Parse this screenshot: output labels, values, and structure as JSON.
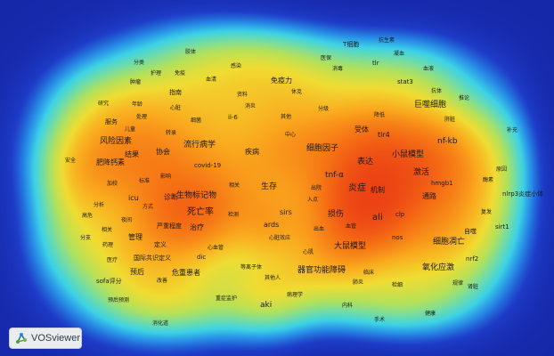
{
  "logo": {
    "text": "VOSviewer"
  },
  "terms": {
    "t_fengxianyinsu": "风险因素",
    "t_jijiangjisu": "肥降钙素",
    "t_jieguo": "结果",
    "t_xiehui": "协会",
    "t_liuxingbingxue": "流行病学",
    "t_icu": "icu",
    "t_zhenduan": "诊断",
    "t_shengwubiaojiwu": "生物标记物",
    "t_siwanglv": "死亡率",
    "t_guanli": "管理",
    "t_zhiliao": "治疗",
    "t_yuhou": "预后",
    "t_weizhonghuanzhe": "危重患者",
    "t_ards": "ards",
    "t_sirs": "sirs",
    "t_shengcun": "生存",
    "t_aki": "aki",
    "t_qiguangongnengzhangai": "器官功能障碍",
    "t_biaoda": "表达",
    "t_yanzheng": "炎症",
    "t_jizhi": "机制",
    "t_xiaoshumoxing": "小鼠模型",
    "t_jihuo": "激活",
    "t_tujing": "通路",
    "t_nfkb": "nf-kb",
    "t_ali": "ali",
    "t_sunshang": "损伤",
    "t_dashumoxing": "大鼠模型",
    "t_ximiaosiwang": "细胞凋亡",
    "t_yanghuayingji": "氧化应激",
    "t_juzhixibao": "巨噬细胞",
    "t_xibaoyinzi": "细胞因子",
    "t_tnfa": "tnf-α",
    "t_tlr4": "tlr4",
    "t_shouti": "受体",
    "t_mianyili": "免疫力",
    "t_tixibao": "T细胞",
    "t_tlr": "tlr",
    "t_stat3": "stat3",
    "t_il6": "il-6",
    "t_covid19": "covid-19",
    "t_jibing": "疾病",
    "t_jiance": "检测",
    "t_dic": "dic",
    "t_sofa": "sofa评分",
    "t_clp": "clp",
    "t_nos": "nos",
    "t_hmgb1": "hmgb1",
    "t_nlrp3": "nlrp3炎症小体",
    "t_sirt1": "sirt1",
    "t_nrf2": "nrf2",
    "t_zishi": "自噬",
    "t_jiaoti": "胶体",
    "t_fenlei": "分类",
    "t_huli": "护理",
    "t_mianyi": "免疫",
    "t_zhongliu": "肿瘤",
    "t_xueqing": "血清",
    "t_ganran": "感染",
    "t_zhizhi": "指南",
    "t_yanjiu": "研究",
    "t_nianling": "年龄",
    "t_xinzang": "心脏",
    "t_fuwu": "服务",
    "t_chuli": "处理",
    "t_xijun": "细菌",
    "t_zhuanlu": "转录",
    "t_ertong": "儿童",
    "t_anquan": "安全",
    "t_yingxiang": "影响",
    "t_yanzhongchengdu": "严重程度",
    "t_dingyi": "定义",
    "t_guojigongshi": "国际共识定义",
    "t_xinxueguan": "心血管",
    "t_dengzhiti": "等离子体",
    "t_xueguan": "血管",
    "t_chuxue": "出血",
    "t_xinzangxiaoying": "心脏效应",
    "t_xinji": "心肌",
    "t_qitaren": "其他人",
    "t_yuhouyuce": "预后预测",
    "t_zhongzhengjianhu": "重症监护",
    "t_xiaohuadao": "消化道",
    "t_shenzang": "肾脏",
    "t_guilv": "规律",
    "t_jianxi": "检细",
    "t_linchuang": "临床",
    "t_feiyan": "肺炎",
    "t_gaozhi": "高值",
    "t_fuxiang": "复发",
    "t_buhuan": "补充",
    "t_yuanyin": "原因",
    "t_meisu": "酶素",
    "t_gancang": "肝脏",
    "t_ketui": "抗体",
    "t_tuilun": "推论",
    "t_xueye": "血液",
    "t_ningxue": "凝血",
    "t_kangshengsu": "抗生素",
    "t_xiaodu": "消毒",
    "t_yibao": "医保",
    "t_xiuke": "休克",
    "t_fengji": "分级",
    "t_gaishan": "改善",
    "t_jiankang": "健康",
    "t_biaozhun": "标准",
    "t_fangshi": "方式",
    "t_yejian": "夜间",
    "t_fenzhi": "分支",
    "t_jiangdi": "降低",
    "t_gaowei": "高危",
    "t_qitan": "其他",
    "t_zhongxin": "中心",
    "t_xiaoya": "消炎",
    "t_jiaxiao": "加校",
    "t_ziliao": "资料",
    "t_chuyuan": "出院",
    "t_rudian": "入点",
    "t_binglixue": "病理学",
    "t_neiguanke": "内科",
    "t_shoushu": "手术",
    "t_fenxi": "分析",
    "t_xiangguan": "相关",
    "t_yaoli": "药理",
    "t_yiliao": "医疗"
  }
}
